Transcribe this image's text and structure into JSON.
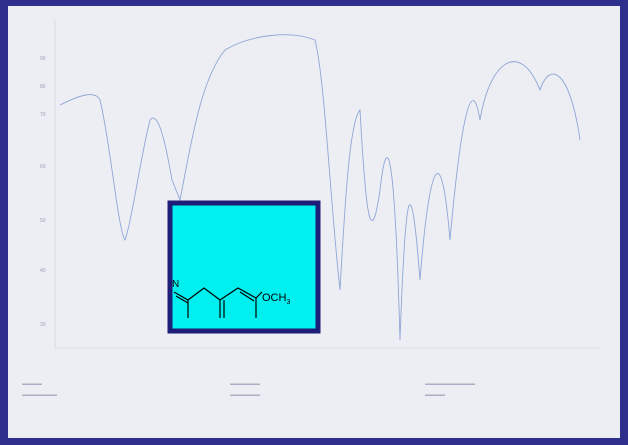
{
  "structure": {
    "atom": "N",
    "group": {
      "text": "OCH",
      "subscript": "3"
    }
  }
}
